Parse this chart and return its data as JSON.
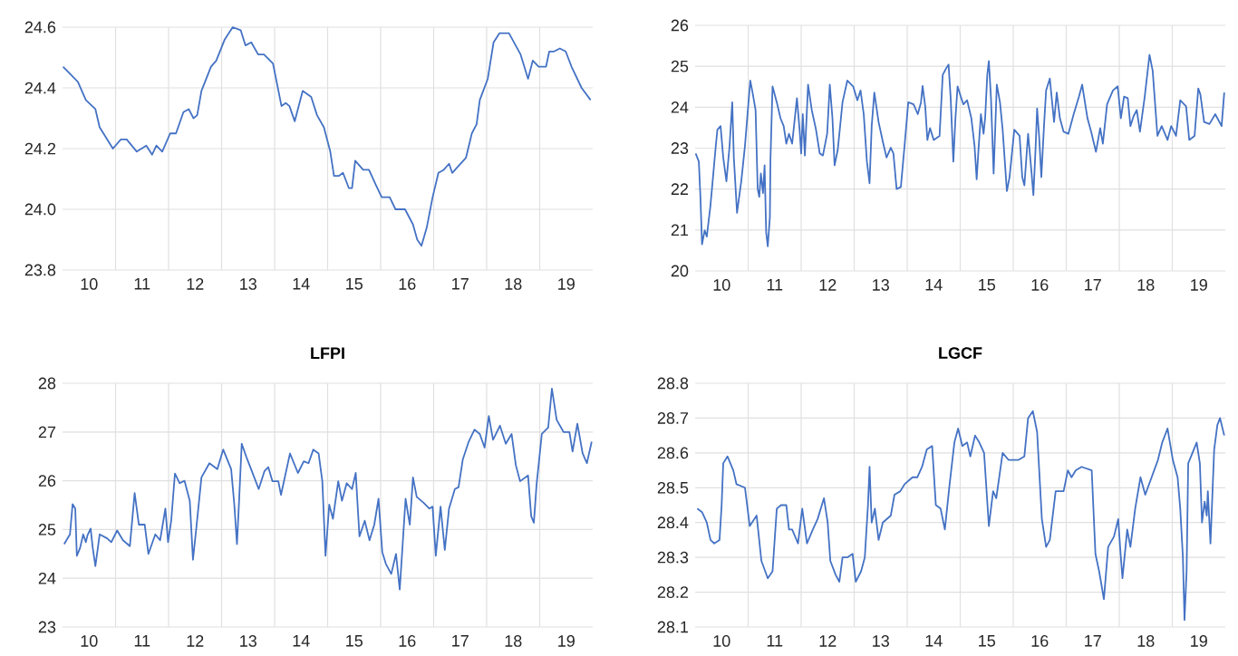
{
  "chart_data": [
    {
      "type": "line",
      "color": "#4472c4",
      "grid": true,
      "xlim": [
        9.5,
        19.5
      ],
      "ylim": [
        23.8,
        24.6
      ],
      "yticks": [
        23.8,
        {
          "value": 24,
          "label": "24.0"
        },
        24.2,
        24.4,
        24.6
      ],
      "xticks": [
        10,
        11,
        12,
        13,
        14,
        15,
        16,
        17,
        18,
        19,
        {
          "value": 10.5,
          "label": null
        },
        {
          "value": 11.5,
          "label": null
        },
        {
          "value": 12.5,
          "label": null
        },
        {
          "value": 13.5,
          "label": null
        },
        {
          "value": 14.5,
          "label": null
        },
        {
          "value": 15.5,
          "label": null
        },
        {
          "value": 16.5,
          "label": null
        },
        {
          "value": 17.5,
          "label": null
        },
        {
          "value": 18.5,
          "label": null
        }
      ],
      "x": [
        9.51,
        9.79,
        9.94,
        10.12,
        10.2,
        10.45,
        10.6,
        10.71,
        10.9,
        11.08,
        11.19,
        11.27,
        11.38,
        11.53,
        11.64,
        11.78,
        11.88,
        11.97,
        12.04,
        12.12,
        12.3,
        12.4,
        12.56,
        12.71,
        12.86,
        12.95,
        13.06,
        13.19,
        13.3,
        13.47,
        13.63,
        13.71,
        13.78,
        13.88,
        14.03,
        14.19,
        14.3,
        14.43,
        14.55,
        14.62,
        14.71,
        14.79,
        14.9,
        14.96,
        15.02,
        15.17,
        15.28,
        15.41,
        15.52,
        15.67,
        15.78,
        15.96,
        16.11,
        16.19,
        16.27,
        16.37,
        16.48,
        16.59,
        16.69,
        16.79,
        16.85,
        17.11,
        17.22,
        17.31,
        17.37,
        17.52,
        17.63,
        17.74,
        17.92,
        18.14,
        18.28,
        18.37,
        18.48,
        18.62,
        18.68,
        18.77,
        18.88,
        18.99,
        19.1,
        19.29,
        19.46
      ],
      "values": [
        24.47,
        24.42,
        24.36,
        24.33,
        24.27,
        24.2,
        24.23,
        24.23,
        24.19,
        24.21,
        24.18,
        24.21,
        24.19,
        24.25,
        24.25,
        24.32,
        24.33,
        24.3,
        24.31,
        24.39,
        24.47,
        24.49,
        24.56,
        24.6,
        24.59,
        24.54,
        24.55,
        24.51,
        24.51,
        24.48,
        24.34,
        24.35,
        24.34,
        24.29,
        24.39,
        24.37,
        24.31,
        24.27,
        24.19,
        24.11,
        24.11,
        24.12,
        24.07,
        24.07,
        24.16,
        24.13,
        24.13,
        24.08,
        24.04,
        24.04,
        24.0,
        24.0,
        23.95,
        23.9,
        23.88,
        23.94,
        24.04,
        24.12,
        24.13,
        24.15,
        24.12,
        24.17,
        24.25,
        24.28,
        24.36,
        24.43,
        24.55,
        24.58,
        24.58,
        24.51,
        24.43,
        24.49,
        24.47,
        24.47,
        24.52,
        24.52,
        24.53,
        24.52,
        24.47,
        24.4,
        24.36
      ]
    },
    {
      "type": "line",
      "color": "#4472c4",
      "grid": true,
      "xlim": [
        9.5,
        19.5
      ],
      "ylim": [
        20,
        26
      ],
      "yticks": [
        20,
        21,
        22,
        23,
        24,
        25,
        26
      ],
      "xticks": [
        10,
        11,
        12,
        13,
        14,
        15,
        16,
        17,
        18,
        19,
        {
          "value": 10.5,
          "label": null
        },
        {
          "value": 11.5,
          "label": null
        },
        {
          "value": 12.5,
          "label": null
        },
        {
          "value": 13.5,
          "label": null
        },
        {
          "value": 14.5,
          "label": null
        },
        {
          "value": 15.5,
          "label": null
        },
        {
          "value": 16.5,
          "label": null
        },
        {
          "value": 17.5,
          "label": null
        },
        {
          "value": 18.5,
          "label": null
        }
      ],
      "x": [
        9.51,
        9.57,
        9.6,
        9.63,
        9.68,
        9.72,
        9.79,
        9.83,
        9.89,
        9.92,
        9.98,
        10.03,
        10.09,
        10.15,
        10.2,
        10.23,
        10.29,
        10.37,
        10.44,
        10.5,
        10.54,
        10.59,
        10.64,
        10.68,
        10.71,
        10.74,
        10.78,
        10.81,
        10.84,
        10.87,
        10.91,
        10.92,
        10.96,
        11.04,
        11.11,
        11.17,
        11.22,
        11.27,
        11.33,
        11.42,
        11.47,
        11.5,
        11.53,
        11.57,
        11.63,
        11.7,
        11.78,
        11.85,
        11.91,
        11.99,
        12.04,
        12.09,
        12.13,
        12.19,
        12.28,
        12.37,
        12.48,
        12.56,
        12.62,
        12.68,
        12.74,
        12.79,
        12.83,
        12.88,
        12.96,
        13.04,
        13.11,
        13.19,
        13.24,
        13.3,
        13.38,
        13.45,
        13.52,
        13.62,
        13.7,
        13.76,
        13.79,
        13.84,
        13.88,
        13.93,
        14.0,
        14.11,
        14.17,
        14.23,
        14.28,
        14.32,
        14.37,
        14.41,
        14.45,
        14.51,
        14.56,
        14.63,
        14.71,
        14.77,
        14.81,
        14.84,
        14.89,
        14.94,
        14.97,
        15.01,
        15.04,
        15.08,
        15.13,
        15.19,
        15.25,
        15.3,
        15.38,
        15.43,
        15.52,
        15.62,
        15.67,
        15.71,
        15.78,
        15.84,
        15.88,
        15.92,
        15.95,
        15.99,
        16.03,
        16.08,
        16.12,
        16.19,
        16.27,
        16.32,
        16.38,
        16.45,
        16.54,
        16.64,
        16.74,
        16.8,
        16.9,
        16.97,
        17.06,
        17.14,
        17.19,
        17.27,
        17.38,
        17.47,
        17.53,
        17.59,
        17.66,
        17.71,
        17.77,
        17.83,
        17.89,
        17.98,
        18.07,
        18.13,
        18.22,
        18.3,
        18.41,
        18.48,
        18.57,
        18.65,
        18.76,
        18.82,
        18.92,
        18.99,
        19.03,
        19.1,
        19.2,
        19.31,
        19.43,
        19.48
      ],
      "values": [
        22.87,
        22.67,
        21.8,
        20.65,
        20.99,
        20.84,
        21.61,
        22.19,
        23.06,
        23.45,
        23.54,
        22.77,
        22.19,
        23.06,
        24.12,
        22.77,
        21.42,
        22.19,
        23.06,
        24.02,
        24.65,
        24.31,
        23.93,
        22.0,
        21.81,
        22.38,
        21.9,
        22.58,
        20.94,
        20.6,
        21.32,
        22.67,
        24.51,
        24.12,
        23.73,
        23.54,
        23.11,
        23.35,
        23.11,
        24.22,
        23.45,
        22.87,
        23.83,
        22.82,
        24.55,
        23.93,
        23.45,
        22.87,
        22.82,
        23.35,
        24.55,
        23.73,
        22.58,
        22.96,
        24.12,
        24.65,
        24.51,
        24.17,
        24.41,
        23.83,
        22.67,
        22.14,
        23.54,
        24.36,
        23.64,
        23.16,
        22.77,
        23.01,
        22.87,
        22.0,
        22.05,
        23.06,
        24.12,
        24.07,
        23.83,
        24.12,
        24.52,
        24.02,
        23.2,
        23.49,
        23.2,
        23.3,
        24.79,
        24.94,
        25.04,
        24.22,
        22.67,
        23.73,
        24.51,
        24.26,
        24.07,
        24.17,
        23.73,
        23.06,
        22.24,
        22.87,
        23.83,
        23.35,
        23.73,
        24.79,
        25.13,
        24.22,
        22.38,
        24.55,
        24.12,
        23.45,
        21.95,
        22.29,
        23.45,
        23.3,
        22.29,
        22.09,
        23.35,
        22.48,
        21.85,
        22.96,
        23.97,
        23.25,
        22.29,
        23.54,
        24.41,
        24.7,
        23.64,
        24.36,
        23.73,
        23.4,
        23.35,
        23.83,
        24.26,
        24.55,
        23.73,
        23.4,
        22.91,
        23.49,
        23.11,
        24.07,
        24.41,
        24.51,
        23.73,
        24.26,
        24.22,
        23.54,
        23.78,
        23.93,
        23.4,
        24.26,
        25.28,
        24.89,
        23.3,
        23.54,
        23.2,
        23.54,
        23.3,
        24.17,
        24.02,
        23.2,
        23.3,
        24.46,
        24.31,
        23.64,
        23.59,
        23.83,
        23.54,
        24.36
      ]
    },
    {
      "type": "line",
      "title": "LFPI",
      "color": "#4472c4",
      "grid": true,
      "xlim": [
        9.5,
        19.5
      ],
      "ylim": [
        23,
        28
      ],
      "yticks": [
        23,
        24,
        25,
        26,
        27,
        28
      ],
      "xticks": [
        10,
        11,
        12,
        13,
        14,
        15,
        16,
        17,
        18,
        19,
        {
          "value": 10.5,
          "label": null
        },
        {
          "value": 11.5,
          "label": null
        },
        {
          "value": 12.5,
          "label": null
        },
        {
          "value": 13.5,
          "label": null
        },
        {
          "value": 14.5,
          "label": null
        },
        {
          "value": 15.5,
          "label": null
        },
        {
          "value": 16.5,
          "label": null
        },
        {
          "value": 17.5,
          "label": null
        },
        {
          "value": 18.5,
          "label": null
        }
      ],
      "x": [
        9.53,
        9.64,
        9.69,
        9.74,
        9.77,
        9.83,
        9.89,
        9.94,
        9.97,
        10.03,
        10.07,
        10.12,
        10.2,
        10.34,
        10.42,
        10.53,
        10.64,
        10.77,
        10.86,
        10.94,
        11.05,
        11.12,
        11.25,
        11.34,
        11.44,
        11.49,
        11.55,
        11.62,
        11.71,
        11.8,
        11.9,
        11.96,
        12.03,
        12.12,
        12.27,
        12.42,
        12.53,
        12.68,
        12.74,
        12.79,
        12.83,
        12.88,
        12.97,
        13.07,
        13.2,
        13.31,
        13.38,
        13.46,
        13.57,
        13.62,
        13.79,
        13.94,
        14.05,
        14.14,
        14.23,
        14.33,
        14.4,
        14.46,
        14.53,
        14.6,
        14.7,
        14.77,
        14.86,
        14.96,
        15.03,
        15.1,
        15.2,
        15.29,
        15.38,
        15.46,
        15.53,
        15.6,
        15.7,
        15.79,
        15.86,
        15.92,
        15.97,
        16.05,
        16.11,
        16.18,
        16.31,
        16.42,
        16.48,
        16.54,
        16.63,
        16.71,
        16.79,
        16.9,
        16.97,
        17.05,
        17.16,
        17.27,
        17.37,
        17.46,
        17.54,
        17.62,
        17.75,
        17.86,
        17.97,
        18.05,
        18.13,
        18.28,
        18.34,
        18.39,
        18.44,
        18.54,
        18.66,
        18.73,
        18.82,
        18.95,
        19.06,
        19.12,
        19.21,
        19.31,
        19.39,
        19.48
      ],
      "values": [
        24.7,
        24.9,
        25.52,
        25.43,
        24.46,
        24.62,
        24.9,
        24.74,
        24.88,
        25.02,
        24.62,
        24.25,
        24.9,
        24.82,
        24.74,
        24.98,
        24.78,
        24.66,
        25.75,
        25.1,
        25.1,
        24.5,
        24.9,
        24.78,
        25.43,
        24.74,
        25.18,
        26.15,
        25.95,
        26.0,
        25.59,
        24.38,
        25.1,
        26.07,
        26.36,
        26.24,
        26.64,
        26.24,
        25.51,
        24.7,
        25.59,
        26.76,
        26.48,
        26.2,
        25.83,
        26.2,
        26.28,
        25.99,
        25.99,
        25.71,
        26.56,
        26.16,
        26.4,
        26.36,
        26.64,
        26.56,
        25.99,
        24.46,
        25.51,
        25.22,
        25.99,
        25.59,
        25.95,
        25.83,
        26.16,
        24.86,
        25.18,
        24.78,
        25.1,
        25.63,
        24.54,
        24.29,
        24.09,
        24.5,
        23.77,
        24.78,
        25.63,
        25.1,
        26.07,
        25.67,
        25.55,
        25.43,
        25.47,
        24.46,
        25.47,
        24.58,
        25.43,
        25.83,
        25.87,
        26.44,
        26.8,
        27.05,
        26.96,
        26.68,
        27.33,
        26.84,
        27.13,
        26.76,
        26.96,
        26.32,
        25.99,
        26.11,
        25.27,
        25.14,
        25.91,
        26.96,
        27.09,
        27.89,
        27.25,
        27.0,
        27.0,
        26.6,
        27.17,
        26.56,
        26.36,
        26.8
      ]
    },
    {
      "type": "line",
      "title": "LGCF",
      "color": "#4472c4",
      "grid": true,
      "xlim": [
        9.5,
        19.5
      ],
      "ylim": [
        28.1,
        28.8
      ],
      "yticks": [
        28.1,
        28.2,
        28.3,
        28.4,
        28.5,
        28.6,
        28.7,
        28.8
      ],
      "xticks": [
        10,
        11,
        12,
        13,
        14,
        15,
        16,
        17,
        18,
        19,
        {
          "value": 10.5,
          "label": null
        },
        {
          "value": 11.5,
          "label": null
        },
        {
          "value": 12.5,
          "label": null
        },
        {
          "value": 13.5,
          "label": null
        },
        {
          "value": 14.5,
          "label": null
        },
        {
          "value": 15.5,
          "label": null
        },
        {
          "value": 16.5,
          "label": null
        },
        {
          "value": 17.5,
          "label": null
        },
        {
          "value": 18.5,
          "label": null
        }
      ],
      "x": [
        9.54,
        9.63,
        9.72,
        9.79,
        9.86,
        9.96,
        10.0,
        10.03,
        10.11,
        10.22,
        10.28,
        10.44,
        10.53,
        10.66,
        10.75,
        10.87,
        10.96,
        11.04,
        11.12,
        11.22,
        11.27,
        11.33,
        11.44,
        11.52,
        11.61,
        11.72,
        11.81,
        11.93,
        12.0,
        12.05,
        12.15,
        12.22,
        12.28,
        12.37,
        12.47,
        12.53,
        12.63,
        12.7,
        12.76,
        12.79,
        12.83,
        12.89,
        12.96,
        13.04,
        13.19,
        13.26,
        13.37,
        13.45,
        13.6,
        13.69,
        13.78,
        13.87,
        13.97,
        14.04,
        14.13,
        14.21,
        14.3,
        14.39,
        14.46,
        14.54,
        14.63,
        14.69,
        14.78,
        14.86,
        14.95,
        15.04,
        15.12,
        15.18,
        15.3,
        15.41,
        15.6,
        15.71,
        15.78,
        15.87,
        15.95,
        16.04,
        16.12,
        16.19,
        16.3,
        16.45,
        16.53,
        16.6,
        16.68,
        16.79,
        16.98,
        17.05,
        17.12,
        17.21,
        17.29,
        17.4,
        17.48,
        17.52,
        17.56,
        17.65,
        17.71,
        17.8,
        17.9,
        17.99,
        18.11,
        18.23,
        18.31,
        18.41,
        18.51,
        18.6,
        18.65,
        18.7,
        18.73,
        18.77,
        18.8,
        18.88,
        18.96,
        19.02,
        19.06,
        19.11,
        19.15,
        19.17,
        19.22,
        19.29,
        19.35,
        19.4,
        19.48
      ],
      "values": [
        28.44,
        28.43,
        28.4,
        28.35,
        28.34,
        28.35,
        28.45,
        28.57,
        28.59,
        28.55,
        28.51,
        28.5,
        28.39,
        28.42,
        28.29,
        28.24,
        28.26,
        28.44,
        28.45,
        28.45,
        28.38,
        28.38,
        28.34,
        28.44,
        28.34,
        28.38,
        28.41,
        28.47,
        28.4,
        28.29,
        28.25,
        28.23,
        28.3,
        28.3,
        28.31,
        28.23,
        28.26,
        28.3,
        28.45,
        28.56,
        28.4,
        28.44,
        28.35,
        28.4,
        28.42,
        28.48,
        28.49,
        28.51,
        28.53,
        28.53,
        28.56,
        28.61,
        28.62,
        28.45,
        28.44,
        28.38,
        28.51,
        28.63,
        28.67,
        28.62,
        28.63,
        28.59,
        28.65,
        28.63,
        28.6,
        28.39,
        28.49,
        28.47,
        28.6,
        28.58,
        28.58,
        28.59,
        28.7,
        28.72,
        28.66,
        28.41,
        28.33,
        28.35,
        28.49,
        28.49,
        28.55,
        28.53,
        28.55,
        28.56,
        28.55,
        28.31,
        28.26,
        28.18,
        28.33,
        28.36,
        28.41,
        28.32,
        28.24,
        28.38,
        28.33,
        28.44,
        28.53,
        28.48,
        28.53,
        28.58,
        28.63,
        28.67,
        28.58,
        28.53,
        28.44,
        28.3,
        28.12,
        28.26,
        28.57,
        28.6,
        28.63,
        28.57,
        28.4,
        28.46,
        28.42,
        28.49,
        28.34,
        28.61,
        28.68,
        28.7,
        28.65
      ]
    }
  ]
}
